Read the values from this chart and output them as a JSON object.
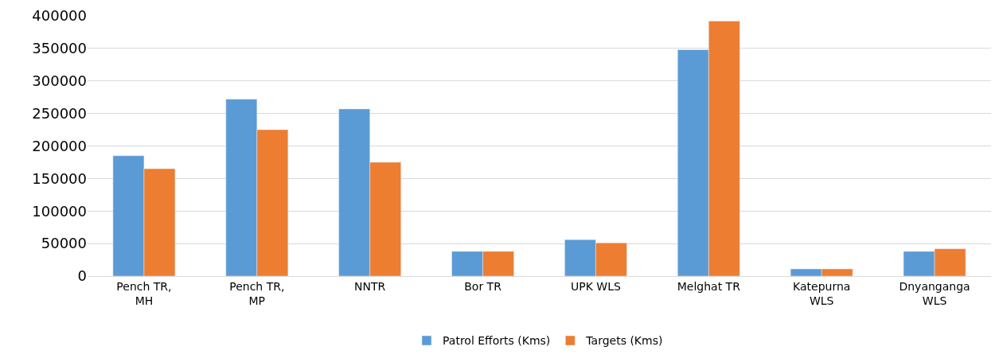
{
  "chart_data": {
    "type": "bar",
    "categories": [
      "Pench TR,\nMH",
      "Pench TR,\nMP",
      "NNTR",
      "Bor TR",
      "UPK WLS",
      "Melghat TR",
      "Katepurna\nWLS",
      "Dnyanganga\nWLS"
    ],
    "series": [
      {
        "name": "Patrol Efforts (Kms)",
        "color": "#5b9bd5",
        "values": [
          185000,
          272000,
          257000,
          38000,
          56000,
          348000,
          11000,
          38000
        ]
      },
      {
        "name": "Targets (Kms)",
        "color": "#ed7d31",
        "values": [
          165000,
          225000,
          175000,
          38000,
          51000,
          392000,
          11000,
          42000
        ]
      }
    ],
    "ylim": [
      0,
      400000
    ],
    "yticks": [
      0,
      50000,
      100000,
      150000,
      200000,
      250000,
      300000,
      350000,
      400000
    ],
    "grid": "y",
    "legend": "bottom"
  }
}
